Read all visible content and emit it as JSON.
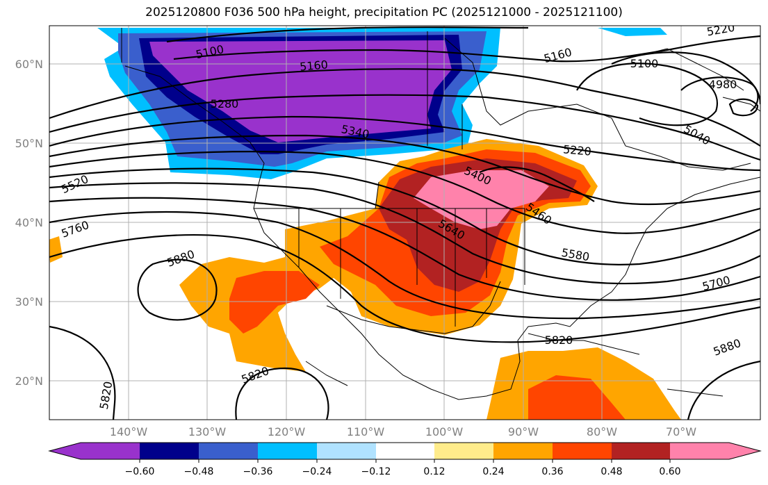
{
  "title": "2025120800 F036 500 hPa height, precipitation PC (2025121000 - 2025121100)",
  "map": {
    "lat_labels": [
      "60°N",
      "50°N",
      "40°N",
      "30°N",
      "20°N"
    ],
    "lon_labels": [
      "140°W",
      "130°W",
      "120°W",
      "110°W",
      "100°W",
      "90°W",
      "80°W",
      "70°W"
    ]
  },
  "contour_labels": [
    {
      "text": "5100",
      "angle": -12
    },
    {
      "text": "5160",
      "angle": -5
    },
    {
      "text": "5280",
      "angle": 0
    },
    {
      "text": "5340",
      "angle": 12
    },
    {
      "text": "5400",
      "angle": 25
    },
    {
      "text": "5460",
      "angle": 35
    },
    {
      "text": "5520",
      "angle": -25
    },
    {
      "text": "5580",
      "angle": 10
    },
    {
      "text": "5640",
      "angle": 30
    },
    {
      "text": "5700",
      "angle": -15
    },
    {
      "text": "5760",
      "angle": -20
    },
    {
      "text": "5820",
      "angle": 0
    },
    {
      "text": "5880",
      "angle": -20
    },
    {
      "text": "5820",
      "angle": -80
    },
    {
      "text": "5880",
      "angle": -20
    },
    {
      "text": "5820",
      "angle": -20
    },
    {
      "text": "5220",
      "angle": 5
    },
    {
      "text": "5160",
      "angle": -15
    },
    {
      "text": "5100",
      "angle": 0
    },
    {
      "text": "5040",
      "angle": 30
    },
    {
      "text": "4980",
      "angle": 0
    },
    {
      "text": "5220",
      "angle": -10
    }
  ],
  "colorbar": {
    "labels": [
      "−0.60",
      "−0.48",
      "−0.36",
      "−0.24",
      "−0.12",
      "0.12",
      "0.24",
      "0.36",
      "0.48",
      "0.60"
    ],
    "colors": [
      "#9932cc",
      "#00008b",
      "#3a5fcd",
      "#00bfff",
      "#b0e2ff",
      "#ffffff",
      "#ffec8b",
      "#ffa500",
      "#ff4500",
      "#b22222",
      "#ff82ab"
    ]
  }
}
